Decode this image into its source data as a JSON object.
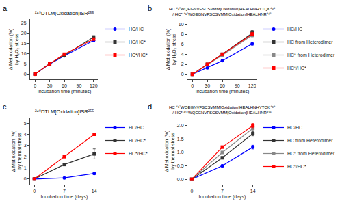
{
  "chart_data": [
    {
      "type": "line",
      "title": "²⁴⁹DTLM[Oxidation]ISR²⁵⁵",
      "annotations": [
        "a"
      ],
      "xlabel": "Incubation time (minutes)",
      "ylabel": "Δ Met oxidation (%)\nby H₂O₂ stress",
      "x": [
        0,
        30,
        60,
        120
      ],
      "xlim": [
        -10,
        130
      ],
      "xticks": [
        0,
        30,
        60,
        90,
        120
      ],
      "ylim": [
        -2.5,
        27
      ],
      "yticks": [
        0,
        5,
        10,
        15,
        20,
        25
      ],
      "grid": false,
      "legend": "right",
      "series": [
        {
          "name": "HC/HC",
          "color": "#0000FF",
          "marker": "circle",
          "values": [
            0,
            5.0,
            9.0,
            16.5
          ],
          "errors": [
            0.05,
            0.2,
            0.25,
            0.55
          ]
        },
        {
          "name": "HC/HC*",
          "color": "#333333",
          "marker": "square",
          "values": [
            0,
            5.2,
            9.2,
            18.2
          ],
          "errors": [
            0.05,
            0.2,
            0.3,
            0.65
          ]
        },
        {
          "name": "HC*/HC*",
          "color": "#FF0000",
          "marker": "square",
          "values": [
            0,
            5.1,
            9.8,
            17.2
          ],
          "errors": [
            0.05,
            0.2,
            0.3,
            0.5
          ]
        }
      ]
    },
    {
      "type": "line",
      "title": "HC ⁴¹⁷WQEGNVFSCSVMM[Oxidation]HEALHNHYTQK⁴³⁹\n/ HC* ⁴¹⁷WQEGNVFSCSVMM[Oxidation]HEALHNR⁴³⁵",
      "annotations": [
        "b"
      ],
      "xlabel": "Incubation time (minutes)",
      "ylabel": "Δ Met oxidation (%)\nby H₂O₂ stress",
      "x": [
        0,
        30,
        60,
        120
      ],
      "xlim": [
        -10,
        130
      ],
      "xticks": [
        0,
        30,
        60,
        90,
        120
      ],
      "ylim": [
        -1,
        11
      ],
      "yticks": [
        0,
        2,
        4,
        6,
        8,
        10
      ],
      "grid": false,
      "legend": "right",
      "series": [
        {
          "name": "HC/HC",
          "color": "#0000FF",
          "marker": "circle",
          "values": [
            0,
            1.3,
            2.7,
            6.1
          ],
          "errors": [
            0.04,
            0.1,
            0.15,
            0.3
          ]
        },
        {
          "name": "HC from Heterodimer",
          "color": "#333333",
          "marker": "square",
          "values": [
            0,
            2.0,
            4.0,
            8.2
          ],
          "errors": [
            0.04,
            0.1,
            0.15,
            0.55
          ]
        },
        {
          "name": "HC* from Heterodimer",
          "color": "#888888",
          "marker": "square",
          "values": [
            0,
            1.9,
            3.8,
            7.8
          ],
          "errors": [
            0.04,
            0.1,
            0.15,
            0.35
          ]
        },
        {
          "name": "HC*/HC*",
          "color": "#FF0000",
          "marker": "square",
          "values": [
            0,
            2.0,
            4.0,
            8.0
          ],
          "errors": [
            0.04,
            0.1,
            0.15,
            0.35
          ]
        }
      ]
    },
    {
      "type": "line",
      "title": "²⁴⁹DTLM[Oxidation]ISR²⁵⁵",
      "annotations": [
        "c"
      ],
      "xlabel": "Incubation time (days)",
      "ylabel": "Δ Met oxidation (%)\nby thermal stress",
      "x": [
        0,
        7,
        14
      ],
      "xlim": [
        -1,
        15
      ],
      "xticks": [
        0,
        7,
        14
      ],
      "ylim": [
        -0.5,
        5.5
      ],
      "yticks": [
        0,
        1,
        2,
        3,
        4,
        5
      ],
      "grid": false,
      "legend": "right",
      "series": [
        {
          "name": "HC/HC",
          "color": "#0000FF",
          "marker": "circle",
          "values": [
            0,
            0.1,
            0.5
          ],
          "errors": [
            0.02,
            0.05,
            0.08
          ]
        },
        {
          "name": "HC/HC*",
          "color": "#333333",
          "marker": "square",
          "values": [
            0,
            1.3,
            2.25
          ],
          "errors": [
            0.02,
            0.08,
            0.45
          ]
        },
        {
          "name": "HC*/HC*",
          "color": "#FF0000",
          "marker": "square",
          "values": [
            0,
            2.0,
            4.0
          ],
          "errors": [
            0.02,
            0.08,
            0.12
          ]
        }
      ]
    },
    {
      "type": "line",
      "title": "HC ⁴¹⁷WQEGNVFSCSVMM[Oxidation]HEALHNHYTQK⁴³⁹\n/ HC* ⁴¹⁷WQEGNVFSCSVMM[Oxidation]HEALHNR⁴³⁵",
      "annotations": [
        "d"
      ],
      "xlabel": "Incubation time (days)",
      "ylabel": "Δ Met oxidation (%)\nby thermal stress",
      "x": [
        0,
        7,
        14
      ],
      "xlim": [
        -1,
        15
      ],
      "xticks": [
        0,
        7,
        14
      ],
      "ylim": [
        -0.2,
        2.3
      ],
      "yticks": [
        {
          "value": 0.0,
          "label": "0.0"
        },
        0.5,
        {
          "value": 1.0,
          "label": "1.0"
        },
        1.5,
        {
          "value": 2.0,
          "label": "2.0"
        }
      ],
      "grid": false,
      "legend": "right",
      "series": [
        {
          "name": "HC/HC",
          "color": "#0000FF",
          "marker": "circle",
          "values": [
            0,
            0.5,
            1.2
          ],
          "errors": [
            0.02,
            0.04,
            0.07
          ]
        },
        {
          "name": "HC from Heterodimer",
          "color": "#333333",
          "marker": "square",
          "values": [
            0,
            0.8,
            1.7
          ],
          "errors": [
            0.02,
            0.04,
            0.08
          ]
        },
        {
          "name": "HC* from Heterodimer",
          "color": "#888888",
          "marker": "square",
          "values": [
            0,
            1.0,
            1.9
          ],
          "errors": [
            0.02,
            0.04,
            0.08
          ]
        },
        {
          "name": "HC*/HC*",
          "color": "#FF0000",
          "marker": "square",
          "values": [
            0,
            1.2,
            2.0
          ],
          "errors": [
            0.02,
            0.04,
            0.08
          ]
        }
      ]
    }
  ]
}
